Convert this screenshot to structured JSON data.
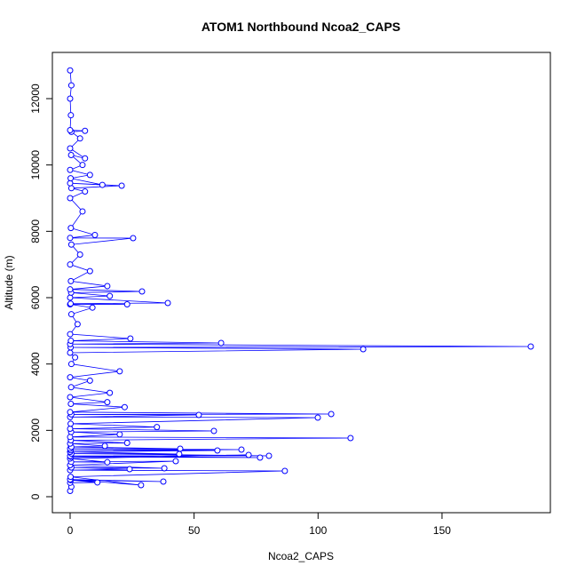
{
  "chart_data": {
    "type": "line",
    "title": "ATOM1 Northbound Ncoa2_CAPS",
    "x_label": "Ncoa2_CAPS",
    "y_label": "Altitude (m)",
    "color": "#0000ff",
    "x": [
      0,
      0.5,
      0,
      11,
      0.3,
      37.6,
      0,
      28.6,
      0.2,
      86.6,
      0,
      24,
      0.5,
      38,
      0,
      42.6,
      0.4,
      15,
      0,
      72,
      0.3,
      76.6,
      0,
      80.2,
      0.5,
      44,
      0,
      59.4,
      0.2,
      69.1,
      0,
      44.4,
      0.5,
      14,
      0,
      23,
      0.3,
      113.1,
      0,
      20,
      0.4,
      58,
      0,
      35,
      0.2,
      99.9,
      0,
      51.9,
      0.5,
      105.3,
      0,
      22,
      0.3,
      15,
      0,
      16,
      0.4,
      8,
      0,
      20,
      0.5,
      2,
      0,
      118.2,
      0.2,
      185.8,
      0,
      60.9,
      0.3,
      24.3,
      0,
      3,
      0.5,
      9,
      0,
      23,
      0.2,
      39.4,
      0,
      16,
      0.4,
      29,
      0,
      15,
      0.3,
      8,
      0,
      4,
      0.5,
      25.4,
      0,
      10,
      0.3,
      5,
      0,
      6,
      0.5,
      20.8,
      0,
      13,
      0.2,
      8,
      0,
      5,
      0.4,
      6,
      0,
      4,
      0.5,
      6,
      0,
      0.3,
      0,
      0.5,
      0
    ],
    "values": [
      175,
      300,
      420,
      430,
      500,
      455,
      520,
      348,
      600,
      777,
      800,
      830,
      880,
      857,
      950,
      1072,
      1050,
      1040,
      1150,
      1259,
      1200,
      1179,
      1230,
      1232,
      1300,
      1286,
      1350,
      1393,
      1400,
      1420,
      1450,
      1446,
      1500,
      1530,
      1600,
      1620,
      1700,
      1768,
      1800,
      1880,
      1950,
      1982,
      2050,
      2100,
      2200,
      2384,
      2400,
      2464,
      2480,
      2491,
      2550,
      2700,
      2800,
      2850,
      3000,
      3130,
      3300,
      3500,
      3600,
      3780,
      4000,
      4200,
      4340,
      4447,
      4500,
      4527,
      4600,
      4634,
      4700,
      4768,
      4900,
      5200,
      5500,
      5700,
      5800,
      5800,
      5820,
      5840,
      6000,
      6050,
      6150,
      6188,
      6250,
      6350,
      6500,
      6800,
      7000,
      7300,
      7600,
      7795,
      7800,
      7890,
      8100,
      8600,
      9000,
      9200,
      9300,
      9376,
      9450,
      9400,
      9600,
      9700,
      9850,
      10000,
      10300,
      10200,
      10500,
      10800,
      11000,
      11030,
      11050,
      11500,
      12000,
      12400,
      12850
    ],
    "xlim": [
      -7.16,
      193.7
    ],
    "ylim": [
      -482,
      13393
    ],
    "xticks": [
      0,
      50,
      100,
      150
    ],
    "yticks": [
      0,
      2000,
      4000,
      6000,
      8000,
      10000,
      12000
    ]
  }
}
